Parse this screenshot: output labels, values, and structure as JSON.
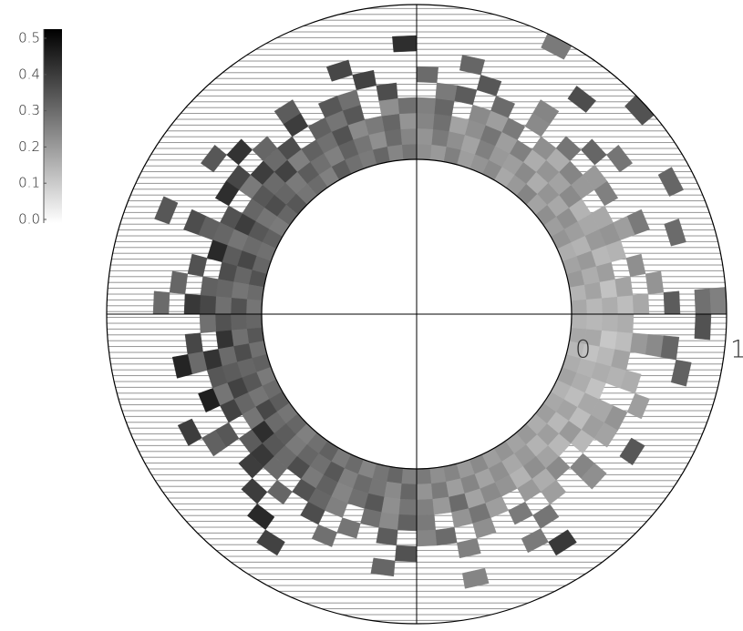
{
  "chart_data": {
    "type": "polar-heatmap",
    "rlim": [
      0,
      1
    ],
    "rticks": [
      0,
      1
    ],
    "clim": [
      0,
      0.5
    ],
    "cticks": [
      {
        "value": 0,
        "label": "0.0"
      },
      0.1,
      0.2,
      0.3,
      0.4,
      0.5
    ],
    "colormap": "gray_r",
    "hatch": true,
    "r_edges": [
      0,
      0.1,
      0.2,
      0.3,
      0.4,
      0.5,
      0.6,
      0.7,
      0.8,
      0.9,
      1
    ],
    "theta_edges": [
      0,
      5,
      10,
      15,
      20,
      25,
      30,
      35,
      40,
      45,
      50,
      55,
      60,
      65,
      70,
      75,
      80,
      85,
      90,
      95,
      100,
      105,
      110,
      115,
      120,
      125,
      130,
      135,
      140,
      145,
      150,
      155,
      160,
      165,
      170,
      175,
      180,
      185,
      190,
      195,
      200,
      205,
      210,
      215,
      220,
      225,
      230,
      235,
      240,
      245,
      250,
      255,
      260,
      265,
      270,
      275,
      280,
      285,
      290,
      295,
      300,
      305,
      310,
      315,
      320,
      325,
      330,
      335,
      340,
      345,
      350,
      355,
      360
    ],
    "z": [
      [
        0.17,
        0.15,
        0.2,
        0.18,
        0.16,
        0.21,
        0.19,
        0.22,
        0.18,
        0.24,
        0.2,
        0.17,
        0.23,
        0.21,
        0.19,
        0.25,
        0.2,
        0.22,
        0.27,
        0.24,
        0.3,
        0.26,
        0.28,
        0.32,
        0.25,
        0.29,
        0.27,
        0.33,
        0.3,
        0.26,
        0.31,
        0.28,
        0.3,
        0.34,
        0.29,
        0.27,
        0.3,
        0.33,
        0.28,
        0.31,
        0.26,
        0.29,
        0.32,
        0.27,
        0.3,
        0.25,
        0.28,
        0.31,
        0.26,
        0.29,
        0.24,
        0.27,
        0.3,
        0.25,
        0.26,
        0.22,
        0.24,
        0.2,
        0.23,
        0.19,
        0.21,
        0.18,
        0.2,
        0.16,
        0.19,
        0.17,
        0.15,
        0.18,
        0.16,
        0.14,
        0.17,
        0.15
      ],
      [
        0.14,
        0.18,
        0.16,
        0.2,
        0.15,
        0.19,
        0.22,
        0.17,
        0.21,
        0.16,
        0.23,
        0.19,
        0.2,
        0.25,
        0.18,
        0.22,
        0.26,
        0.21,
        0.24,
        0.29,
        0.22,
        0.27,
        0.31,
        0.25,
        0.28,
        0.32,
        0.26,
        0.3,
        0.35,
        0.27,
        0.33,
        0.29,
        0.36,
        0.3,
        0.27,
        0.34,
        0.31,
        0.28,
        0.35,
        0.3,
        0.33,
        0.27,
        0.36,
        0.29,
        0.32,
        0.26,
        0.3,
        0.28,
        0.33,
        0.25,
        0.29,
        0.27,
        0.23,
        0.3,
        0.21,
        0.26,
        0.19,
        0.24,
        0.18,
        0.22,
        0.17,
        0.2,
        0.15,
        0.19,
        0.14,
        0.18,
        0.13,
        0.16,
        0.15,
        0.12,
        0.17,
        0.14
      ],
      [
        0.16,
        0.12,
        0.19,
        0.14,
        0.2,
        0.17,
        0.15,
        0.23,
        0.18,
        0.21,
        0.16,
        0.25,
        0.19,
        0.27,
        0.22,
        0.18,
        0.28,
        0.24,
        0.21,
        0.3,
        0.26,
        0.23,
        0.34,
        0.28,
        0.31,
        0.25,
        0.37,
        0.29,
        0.33,
        0.3,
        0.38,
        0.27,
        0.32,
        0.35,
        0.3,
        0.28,
        0.34,
        0.4,
        0.29,
        0.32,
        0.37,
        0.3,
        0.27,
        0.41,
        0.33,
        0.29,
        0.35,
        0.26,
        0.31,
        0.24,
        0.28,
        0.33,
        0.22,
        0.27,
        0.25,
        0.2,
        0.29,
        0.18,
        0.23,
        0.21,
        0.15,
        0.22,
        0.18,
        0.14,
        0.2,
        0.13,
        0.17,
        0.12,
        0.16,
        0.14,
        0.11,
        0.15
      ],
      [
        0.13,
        0.18,
        null,
        0.15,
        0.21,
        0.17,
        null,
        0.2,
        0.24,
        0.16,
        0.22,
        null,
        0.26,
        0.19,
        0.23,
        null,
        0.3,
        0.25,
        0.28,
        0.22,
        null,
        0.33,
        0.27,
        0.31,
        null,
        0.35,
        0.29,
        0.38,
        0.26,
        null,
        0.34,
        0.3,
        0.42,
        null,
        0.31,
        0.36,
        0.28,
        null,
        0.4,
        0.33,
        0.27,
        0.37,
        null,
        0.32,
        0.39,
        0.29,
        null,
        0.34,
        0.3,
        0.25,
        null,
        0.28,
        0.23,
        0.31,
        0.26,
        null,
        0.21,
        0.27,
        0.19,
        null,
        0.2,
        0.16,
        0.23,
        null,
        0.14,
        0.19,
        0.17,
        null,
        0.15,
        0.18,
        0.13,
        0.16
      ],
      [
        0.17,
        null,
        0.22,
        null,
        0.19,
        null,
        0.25,
        0.2,
        null,
        0.27,
        null,
        0.23,
        null,
        0.29,
        null,
        0.32,
        0.26,
        null,
        null,
        0.35,
        null,
        0.28,
        0.33,
        null,
        0.38,
        null,
        0.3,
        null,
        0.36,
        0.41,
        null,
        0.31,
        null,
        0.34,
        null,
        0.39,
        null,
        0.36,
        0.29,
        null,
        0.44,
        null,
        0.33,
        null,
        0.38,
        null,
        0.3,
        null,
        0.35,
        null,
        0.27,
        null,
        0.32,
        null,
        0.24,
        0.29,
        null,
        0.22,
        null,
        0.26,
        null,
        0.19,
        null,
        0.24,
        null,
        0.18,
        0.21,
        null,
        0.16,
        null,
        0.2,
        null
      ],
      [
        null,
        0.21,
        null,
        null,
        0.26,
        null,
        null,
        null,
        0.3,
        null,
        null,
        0.24,
        null,
        null,
        0.33,
        null,
        null,
        0.29,
        null,
        null,
        0.37,
        null,
        null,
        null,
        0.32,
        null,
        null,
        0.4,
        null,
        null,
        null,
        0.35,
        null,
        null,
        0.3,
        null,
        null,
        null,
        0.43,
        null,
        null,
        null,
        0.31,
        null,
        null,
        0.38,
        null,
        null,
        null,
        0.28,
        null,
        null,
        null,
        0.34,
        null,
        null,
        0.25,
        null,
        null,
        null,
        0.27,
        null,
        null,
        0.22,
        null,
        null,
        null,
        0.19,
        null,
        null,
        0.23,
        null
      ],
      [
        0.32,
        null,
        null,
        null,
        null,
        null,
        null,
        0.27,
        null,
        null,
        null,
        null,
        null,
        null,
        null,
        0.3,
        null,
        null,
        null,
        null,
        null,
        0.36,
        null,
        null,
        null,
        null,
        null,
        null,
        0.33,
        null,
        null,
        null,
        null,
        null,
        null,
        0.29,
        null,
        null,
        null,
        null,
        null,
        0.38,
        null,
        null,
        null,
        null,
        0.42,
        null,
        null,
        null,
        null,
        null,
        0.3,
        null,
        null,
        null,
        null,
        null,
        null,
        0.26,
        null,
        null,
        null,
        null,
        null,
        0.33,
        null,
        null,
        null,
        null,
        0.3,
        null
      ],
      [
        null,
        null,
        null,
        0.29,
        null,
        null,
        null,
        null,
        null,
        null,
        0.35,
        null,
        null,
        null,
        null,
        null,
        null,
        null,
        0.41,
        null,
        null,
        null,
        null,
        null,
        null,
        null,
        null,
        null,
        null,
        null,
        null,
        0.33,
        null,
        null,
        null,
        null,
        null,
        null,
        null,
        null,
        null,
        null,
        null,
        null,
        null,
        null,
        null,
        0.37,
        null,
        null,
        null,
        null,
        null,
        null,
        null,
        null,
        0.24,
        null,
        null,
        null,
        0.39,
        null,
        null,
        null,
        null,
        null,
        null,
        null,
        null,
        0.31,
        null,
        null
      ],
      [
        0.28,
        null,
        null,
        null,
        null,
        0.3,
        null,
        null,
        null,
        null,
        null,
        null,
        null,
        null,
        null,
        null,
        null,
        null,
        null,
        null,
        null,
        null,
        null,
        null,
        null,
        null,
        null,
        null,
        null,
        null,
        null,
        null,
        null,
        null,
        null,
        null,
        null,
        null,
        null,
        null,
        null,
        null,
        null,
        null,
        null,
        null,
        null,
        null,
        null,
        null,
        null,
        null,
        null,
        null,
        null,
        null,
        null,
        null,
        null,
        null,
        null,
        null,
        null,
        null,
        null,
        null,
        null,
        null,
        null,
        null,
        null,
        0.34
      ],
      [
        0.25,
        null,
        null,
        null,
        null,
        null,
        null,
        null,
        0.34,
        null,
        null,
        null,
        0.26,
        null,
        null,
        null,
        null,
        null,
        null,
        null,
        null,
        null,
        null,
        null,
        null,
        null,
        null,
        null,
        null,
        null,
        null,
        null,
        null,
        null,
        null,
        null,
        null,
        null,
        null,
        null,
        null,
        null,
        null,
        null,
        null,
        null,
        null,
        null,
        null,
        null,
        null,
        null,
        null,
        null,
        null,
        null,
        null,
        null,
        null,
        null,
        null,
        null,
        null,
        null,
        null,
        null,
        null,
        null,
        null,
        null,
        null,
        null
      ]
    ]
  }
}
